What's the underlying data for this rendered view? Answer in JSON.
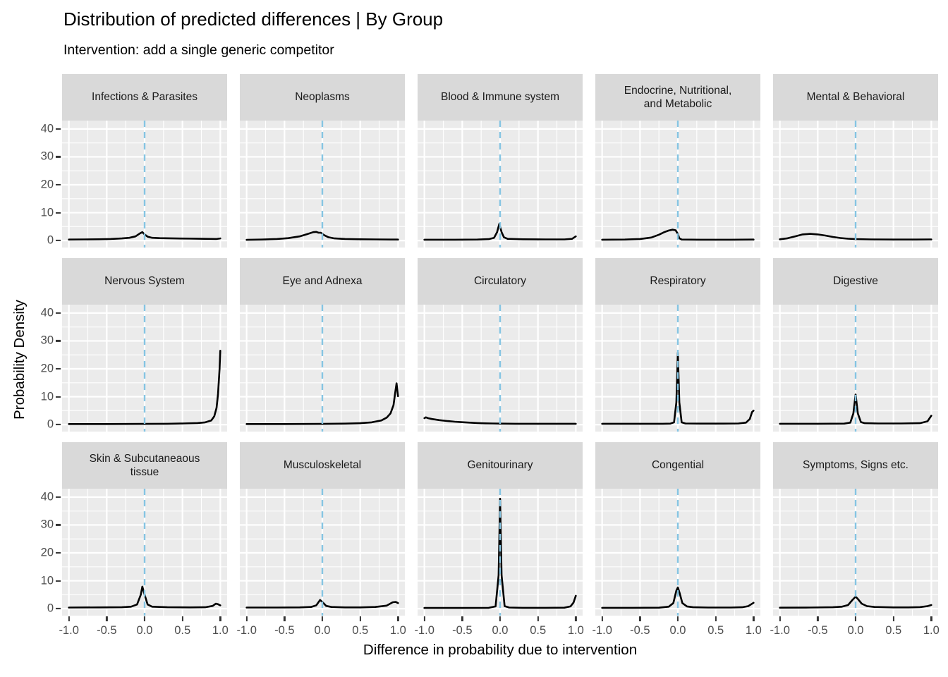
{
  "colors": {
    "background": "#FFFFFF",
    "panel_bg": "#EBEBEB",
    "gridline": "#FFFFFF",
    "strip_bg": "#D9D9D9",
    "strip_text": "#1A1A1A",
    "axis_text": "#4D4D4D",
    "tick_mark": "#333333",
    "curve": "#000000",
    "reference_line": "#85C5E3"
  },
  "chart_data": {
    "type": "line",
    "title": "Distribution of predicted differences | By Group",
    "subtitle": "Intervention: add a single generic competitor",
    "xlabel": "Difference in probability due to intervention",
    "ylabel": "Probability Density",
    "xlim": [
      -1.09,
      1.09
    ],
    "ylim": [
      -2.5,
      43
    ],
    "x_major_ticks": [
      -1,
      -0.5,
      0,
      0.5,
      1
    ],
    "x_tick_labels": [
      "-1.0",
      "-0.5",
      "0.0",
      "0.5",
      "1.0"
    ],
    "x_minor_ticks": [
      -0.75,
      -0.25,
      0.25,
      0.75
    ],
    "y_major_ticks": [
      0,
      10,
      20,
      30,
      40
    ],
    "y_tick_labels": [
      "0",
      "10",
      "20",
      "30",
      "40"
    ],
    "y_minor_ticks": [
      5,
      15,
      25,
      35
    ],
    "grid": "on",
    "legend": "none",
    "layout": {
      "rows": 3,
      "cols": 5
    },
    "reference_line": {
      "x": 0,
      "style": "dashed",
      "color": "#85C5E3"
    },
    "facets": [
      {
        "label": "Infections & Parasites",
        "points": [
          [
            -1,
            0.35
          ],
          [
            -0.8,
            0.4
          ],
          [
            -0.6,
            0.45
          ],
          [
            -0.45,
            0.55
          ],
          [
            -0.3,
            0.75
          ],
          [
            -0.2,
            1.0
          ],
          [
            -0.12,
            1.5
          ],
          [
            -0.06,
            2.6
          ],
          [
            -0.03,
            3.0
          ],
          [
            0,
            2.2
          ],
          [
            0.04,
            1.4
          ],
          [
            0.1,
            1.0
          ],
          [
            0.2,
            0.85
          ],
          [
            0.4,
            0.75
          ],
          [
            0.6,
            0.7
          ],
          [
            0.8,
            0.6
          ],
          [
            0.95,
            0.55
          ],
          [
            1,
            0.75
          ]
        ]
      },
      {
        "label": "Neoplasms",
        "points": [
          [
            -1,
            0.25
          ],
          [
            -0.8,
            0.35
          ],
          [
            -0.6,
            0.55
          ],
          [
            -0.45,
            0.85
          ],
          [
            -0.3,
            1.5
          ],
          [
            -0.2,
            2.3
          ],
          [
            -0.12,
            3.0
          ],
          [
            -0.08,
            3.1
          ],
          [
            -0.05,
            2.8
          ],
          [
            -0.02,
            2.8
          ],
          [
            0.02,
            2.0
          ],
          [
            0.08,
            1.2
          ],
          [
            0.15,
            0.8
          ],
          [
            0.3,
            0.55
          ],
          [
            0.5,
            0.45
          ],
          [
            0.7,
            0.4
          ],
          [
            0.9,
            0.35
          ],
          [
            1,
            0.35
          ]
        ]
      },
      {
        "label": "Blood & Immune system",
        "points": [
          [
            -1,
            0.3
          ],
          [
            -0.6,
            0.3
          ],
          [
            -0.3,
            0.35
          ],
          [
            -0.15,
            0.5
          ],
          [
            -0.08,
            1.0
          ],
          [
            -0.04,
            3.0
          ],
          [
            -0.01,
            6.0
          ],
          [
            0.02,
            3.0
          ],
          [
            0.05,
            1.2
          ],
          [
            0.1,
            0.6
          ],
          [
            0.3,
            0.45
          ],
          [
            0.6,
            0.4
          ],
          [
            0.85,
            0.4
          ],
          [
            0.95,
            0.6
          ],
          [
            1,
            1.5
          ]
        ]
      },
      {
        "label": "Endocrine, Nutritional,\nand Metabolic",
        "points": [
          [
            -1,
            0.3
          ],
          [
            -0.7,
            0.35
          ],
          [
            -0.5,
            0.55
          ],
          [
            -0.35,
            1.1
          ],
          [
            -0.25,
            2.1
          ],
          [
            -0.18,
            3.0
          ],
          [
            -0.12,
            3.6
          ],
          [
            -0.07,
            3.9
          ],
          [
            -0.03,
            3.7
          ],
          [
            0,
            2.4
          ],
          [
            0.02,
            0.8
          ],
          [
            0.05,
            0.35
          ],
          [
            0.3,
            0.3
          ],
          [
            0.7,
            0.3
          ],
          [
            1,
            0.35
          ]
        ]
      },
      {
        "label": "Mental & Behavioral",
        "points": [
          [
            -1,
            0.45
          ],
          [
            -0.9,
            0.8
          ],
          [
            -0.8,
            1.5
          ],
          [
            -0.7,
            2.2
          ],
          [
            -0.6,
            2.4
          ],
          [
            -0.5,
            2.2
          ],
          [
            -0.4,
            1.8
          ],
          [
            -0.3,
            1.3
          ],
          [
            -0.2,
            0.9
          ],
          [
            -0.1,
            0.65
          ],
          [
            0,
            0.5
          ],
          [
            0.2,
            0.4
          ],
          [
            0.5,
            0.35
          ],
          [
            0.8,
            0.35
          ],
          [
            1,
            0.4
          ]
        ]
      },
      {
        "label": "Nervous System",
        "points": [
          [
            -1,
            0.2
          ],
          [
            -0.5,
            0.2
          ],
          [
            0,
            0.25
          ],
          [
            0.3,
            0.3
          ],
          [
            0.5,
            0.4
          ],
          [
            0.7,
            0.55
          ],
          [
            0.8,
            0.8
          ],
          [
            0.88,
            1.5
          ],
          [
            0.92,
            3
          ],
          [
            0.95,
            6
          ],
          [
            0.97,
            11
          ],
          [
            0.99,
            20
          ],
          [
            1,
            26.5
          ]
        ]
      },
      {
        "label": "Eye and Adnexa",
        "points": [
          [
            -1,
            0.2
          ],
          [
            -0.5,
            0.2
          ],
          [
            0,
            0.25
          ],
          [
            0.3,
            0.35
          ],
          [
            0.5,
            0.5
          ],
          [
            0.65,
            0.8
          ],
          [
            0.78,
            1.5
          ],
          [
            0.85,
            2.5
          ],
          [
            0.9,
            4
          ],
          [
            0.94,
            7
          ],
          [
            0.965,
            12
          ],
          [
            0.98,
            14.8
          ],
          [
            1,
            10.2
          ]
        ]
      },
      {
        "label": "Circulatory",
        "points": [
          [
            -1,
            2.3
          ],
          [
            -0.98,
            2.6
          ],
          [
            -0.95,
            2.3
          ],
          [
            -0.9,
            2.0
          ],
          [
            -0.8,
            1.6
          ],
          [
            -0.7,
            1.3
          ],
          [
            -0.6,
            1.05
          ],
          [
            -0.5,
            0.85
          ],
          [
            -0.4,
            0.7
          ],
          [
            -0.3,
            0.55
          ],
          [
            -0.2,
            0.45
          ],
          [
            -0.1,
            0.4
          ],
          [
            0,
            0.35
          ],
          [
            0.2,
            0.3
          ],
          [
            0.5,
            0.3
          ],
          [
            0.8,
            0.3
          ],
          [
            1,
            0.3
          ]
        ]
      },
      {
        "label": "Respiratory",
        "points": [
          [
            -1,
            0.3
          ],
          [
            -0.5,
            0.3
          ],
          [
            -0.2,
            0.3
          ],
          [
            -0.1,
            0.35
          ],
          [
            -0.05,
            0.8
          ],
          [
            -0.02,
            8
          ],
          [
            0,
            25.8
          ],
          [
            0.02,
            8
          ],
          [
            0.05,
            0.8
          ],
          [
            0.1,
            0.4
          ],
          [
            0.3,
            0.35
          ],
          [
            0.6,
            0.35
          ],
          [
            0.8,
            0.4
          ],
          [
            0.9,
            0.7
          ],
          [
            0.95,
            2
          ],
          [
            0.98,
            4.5
          ],
          [
            1,
            5
          ]
        ]
      },
      {
        "label": "Digestive",
        "points": [
          [
            -1,
            0.3
          ],
          [
            -0.5,
            0.3
          ],
          [
            -0.15,
            0.35
          ],
          [
            -0.07,
            0.7
          ],
          [
            -0.03,
            4
          ],
          [
            0,
            10.8
          ],
          [
            0.03,
            4
          ],
          [
            0.07,
            0.9
          ],
          [
            0.12,
            0.5
          ],
          [
            0.3,
            0.4
          ],
          [
            0.6,
            0.4
          ],
          [
            0.85,
            0.5
          ],
          [
            0.95,
            1.2
          ],
          [
            1,
            3.2
          ]
        ]
      },
      {
        "label": "Skin & Subcutaneaous\ntissue",
        "points": [
          [
            -1,
            0.4
          ],
          [
            -0.6,
            0.45
          ],
          [
            -0.3,
            0.5
          ],
          [
            -0.18,
            0.7
          ],
          [
            -0.1,
            1.5
          ],
          [
            -0.05,
            5
          ],
          [
            -0.03,
            7.9
          ],
          [
            0,
            5
          ],
          [
            0.04,
            1.5
          ],
          [
            0.1,
            0.7
          ],
          [
            0.3,
            0.5
          ],
          [
            0.6,
            0.45
          ],
          [
            0.8,
            0.5
          ],
          [
            0.9,
            1.0
          ],
          [
            0.94,
            1.8
          ],
          [
            0.97,
            1.6
          ],
          [
            1,
            1.2
          ]
        ]
      },
      {
        "label": "Musculoskeletal",
        "points": [
          [
            -1,
            0.4
          ],
          [
            -0.6,
            0.4
          ],
          [
            -0.3,
            0.45
          ],
          [
            -0.15,
            0.6
          ],
          [
            -0.08,
            1.2
          ],
          [
            -0.03,
            3.1
          ],
          [
            0,
            2.4
          ],
          [
            0.05,
            1.0
          ],
          [
            0.12,
            0.6
          ],
          [
            0.3,
            0.45
          ],
          [
            0.5,
            0.45
          ],
          [
            0.7,
            0.6
          ],
          [
            0.85,
            1.1
          ],
          [
            0.93,
            2.3
          ],
          [
            0.97,
            2.4
          ],
          [
            1,
            2.0
          ]
        ]
      },
      {
        "label": "Genitourinary",
        "points": [
          [
            -1,
            0.25
          ],
          [
            -0.5,
            0.25
          ],
          [
            -0.15,
            0.3
          ],
          [
            -0.06,
            0.8
          ],
          [
            -0.02,
            12
          ],
          [
            0,
            39.4
          ],
          [
            0.02,
            12
          ],
          [
            0.06,
            0.9
          ],
          [
            0.12,
            0.4
          ],
          [
            0.3,
            0.3
          ],
          [
            0.6,
            0.3
          ],
          [
            0.85,
            0.35
          ],
          [
            0.93,
            0.8
          ],
          [
            0.97,
            2.2
          ],
          [
            1,
            4.6
          ]
        ]
      },
      {
        "label": "Congential",
        "points": [
          [
            -1,
            0.3
          ],
          [
            -0.6,
            0.3
          ],
          [
            -0.25,
            0.35
          ],
          [
            -0.12,
            0.7
          ],
          [
            -0.06,
            2
          ],
          [
            -0.02,
            6.5
          ],
          [
            0,
            7.6
          ],
          [
            0.02,
            6
          ],
          [
            0.06,
            2
          ],
          [
            0.12,
            0.8
          ],
          [
            0.2,
            0.5
          ],
          [
            0.4,
            0.4
          ],
          [
            0.7,
            0.4
          ],
          [
            0.85,
            0.5
          ],
          [
            0.93,
            0.9
          ],
          [
            0.97,
            1.6
          ],
          [
            1,
            2.1
          ]
        ]
      },
      {
        "label": "Symptoms, Signs etc.",
        "points": [
          [
            -1,
            0.35
          ],
          [
            -0.6,
            0.4
          ],
          [
            -0.3,
            0.5
          ],
          [
            -0.18,
            0.7
          ],
          [
            -0.1,
            1.3
          ],
          [
            -0.04,
            3.2
          ],
          [
            0,
            4.3
          ],
          [
            0.03,
            3.5
          ],
          [
            0.08,
            1.8
          ],
          [
            0.15,
            0.9
          ],
          [
            0.25,
            0.6
          ],
          [
            0.5,
            0.45
          ],
          [
            0.7,
            0.45
          ],
          [
            0.85,
            0.55
          ],
          [
            0.95,
            0.9
          ],
          [
            1,
            1.3
          ]
        ]
      }
    ]
  }
}
